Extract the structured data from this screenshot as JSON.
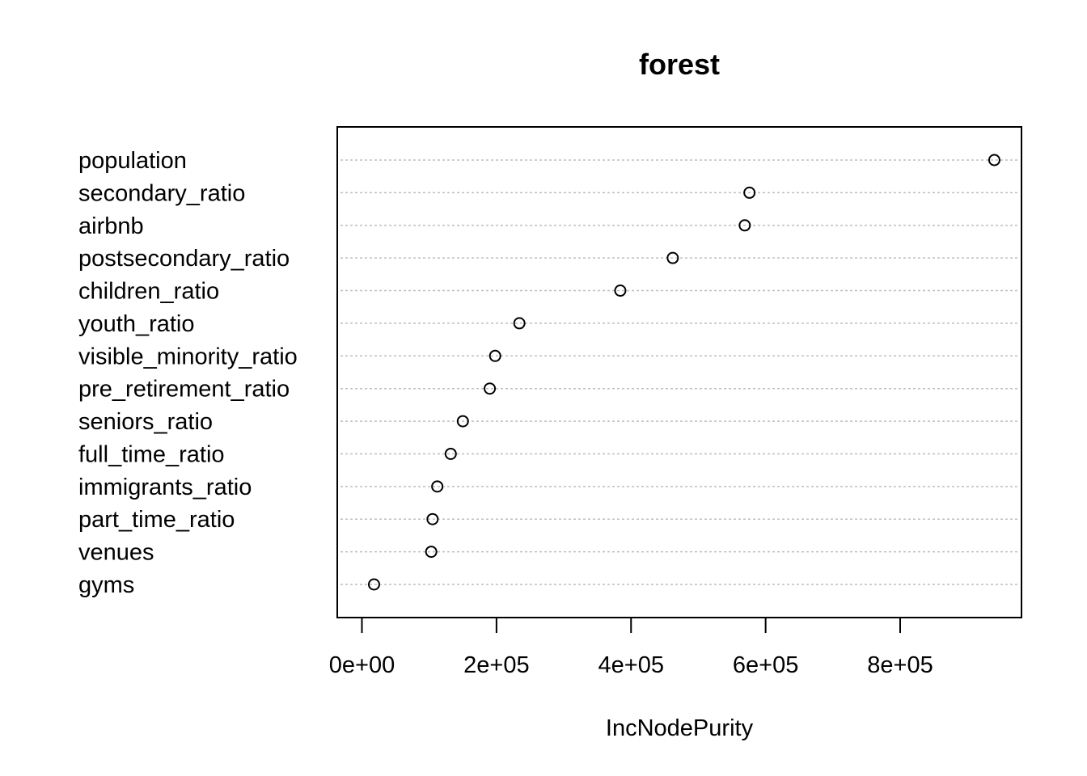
{
  "chart_data": {
    "type": "scatter",
    "title": "forest",
    "xlabel": "IncNodePurity",
    "ylabel": "",
    "xlim": [
      0,
      950000
    ],
    "grid": "horizontal dotted lines at each variable",
    "categories": [
      "population",
      "secondary_ratio",
      "airbnb",
      "postsecondary_ratio",
      "children_ratio",
      "youth_ratio",
      "visible_minority_ratio",
      "pre_retirement_ratio",
      "seniors_ratio",
      "full_time_ratio",
      "immigrants_ratio",
      "part_time_ratio",
      "venues",
      "gyms"
    ],
    "values": [
      940000,
      576000,
      569000,
      462000,
      384000,
      234000,
      198000,
      190000,
      150000,
      132000,
      112000,
      105000,
      103000,
      18000
    ],
    "x_ticks": [
      0,
      200000,
      400000,
      600000,
      800000
    ],
    "x_tick_labels": [
      "0e+00",
      "2e+05",
      "4e+05",
      "6e+05",
      "8e+05"
    ],
    "colors": {
      "marker_stroke": "#000000",
      "grid": "#bebebe",
      "frame": "#000000"
    }
  }
}
